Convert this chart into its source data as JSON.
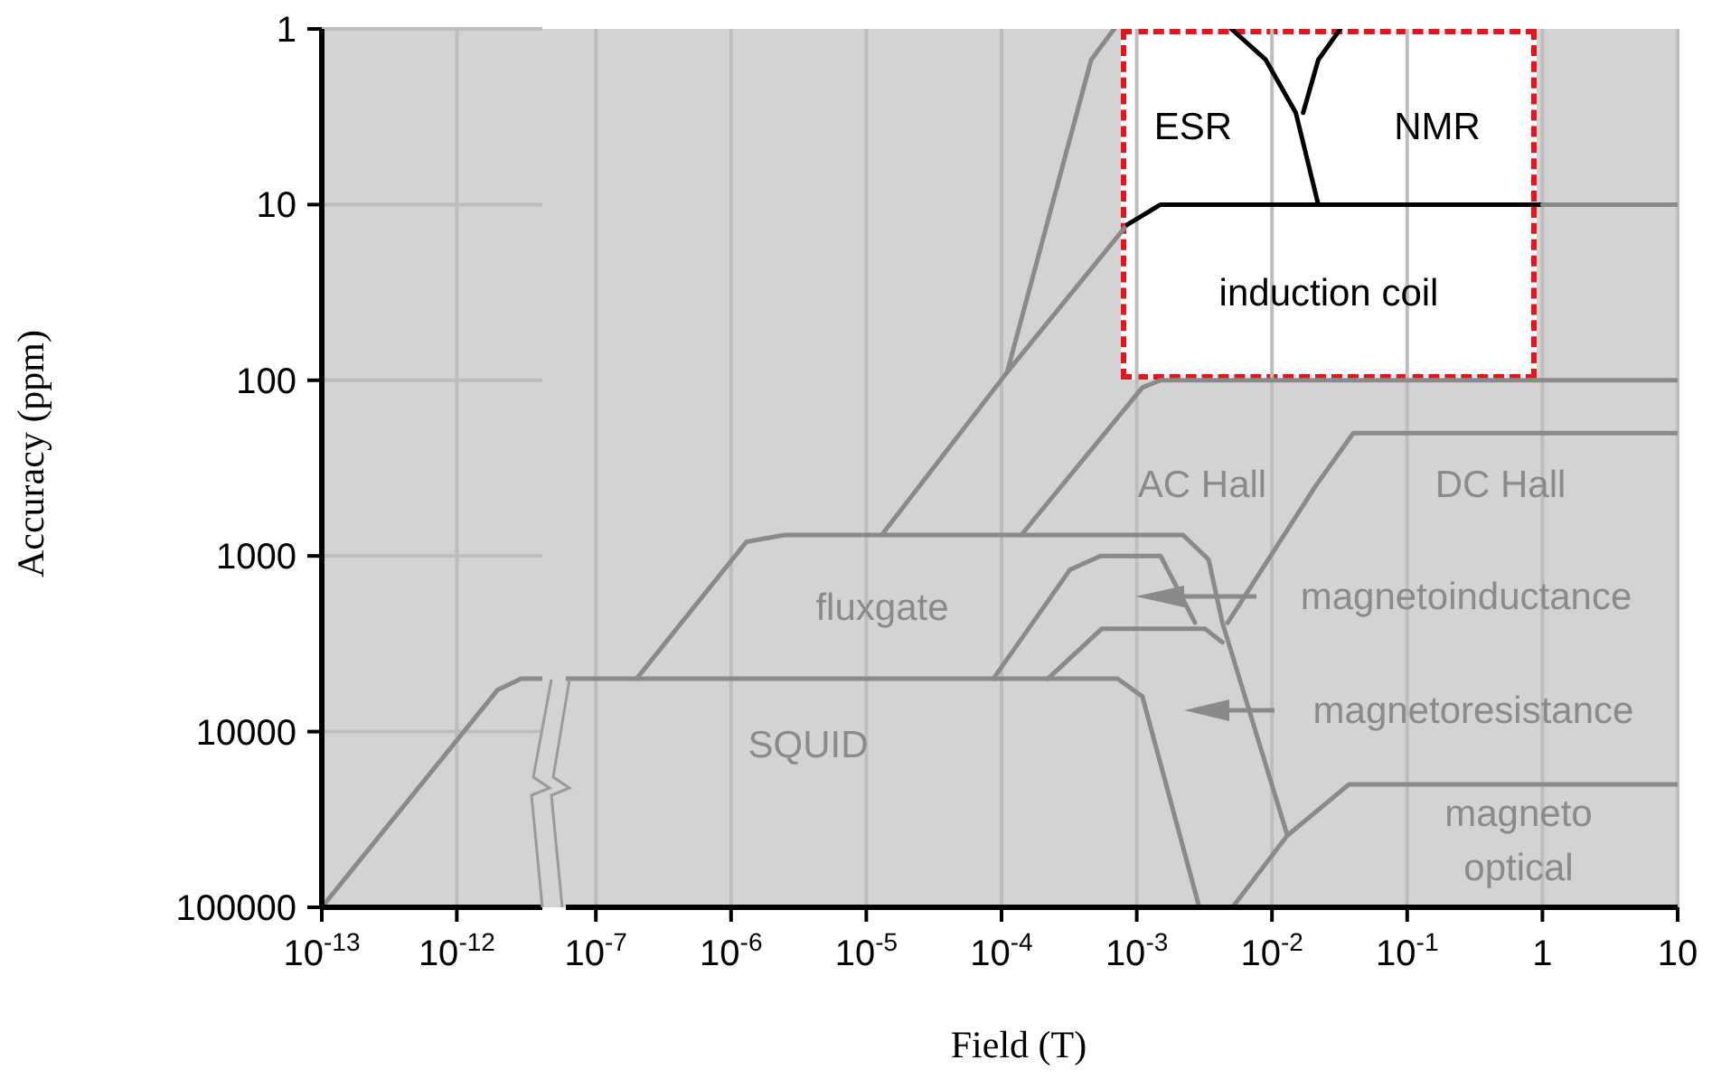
{
  "chart_data": [
    {
      "type": "line",
      "ylabel": "Accuracy (ppm)",
      "log": "xy",
      "grid": true,
      "marker": "none",
      "xlim": [
        1e-13,
        4.3e-12
      ],
      "xticks": [
        {
          "value": 1e-13,
          "label": "10$^{-13}$"
        },
        {
          "value": 1e-12,
          "label": "10$^{-12}$"
        }
      ],
      "ylim": [
        100000,
        1
      ],
      "yticks": [
        1,
        10,
        100,
        1000,
        10000,
        100000
      ],
      "series": [
        {
          "color": "#8a8a8a",
          "x": [
            1e-13,
            2e-12,
            3e-12,
            4.3e-12
          ],
          "values": [
            100000,
            5800,
            5000,
            5000
          ]
        }
      ]
    },
    {
      "type": "line",
      "xlabel": "Field (T)",
      "log": "xy",
      "grid": true,
      "marker": "none",
      "tick_labels": "x",
      "xlim": [
        6e-08,
        10
      ],
      "xticks": [
        {
          "value": 1e-07,
          "label": "10$^{-7}$"
        },
        {
          "value": 1e-06,
          "label": "10$^{-6}$"
        },
        {
          "value": 1e-05,
          "label": "10$^{-5}$"
        },
        {
          "value": 0.0001,
          "label": "10$^{-4}$"
        },
        {
          "value": 0.001,
          "label": "10$^{-3}$"
        },
        {
          "value": 0.01,
          "label": "10$^{-2}$"
        },
        {
          "value": 0.1,
          "label": "10$^{-1}$"
        },
        1,
        10
      ],
      "ylim": [
        100000,
        1
      ],
      "yticks": [
        1,
        10,
        100,
        1000,
        10000,
        100000
      ],
      "series": [
        {
          "color": "#8a8a8a",
          "x": [
            6e-08,
            0.00072,
            0.0011,
            0.0029
          ],
          "values": [
            5000,
            5000,
            6300,
            100000
          ]
        },
        {
          "color": "#8a8a8a",
          "x": [
            2e-07,
            1.3e-06,
            2.5e-06,
            0.0022,
            0.0034,
            0.0043,
            0.013
          ],
          "values": [
            5000,
            830,
            760,
            760,
            1050,
            2400,
            39000
          ]
        },
        {
          "color": "#8a8a8a",
          "x": [
            1.3e-05,
            0.00011,
            0.00046,
            0.00068
          ],
          "values": [
            760,
            90,
            1.5,
            1
          ]
        },
        {
          "color": "#8a8a8a",
          "x": [
            0.00011,
            0.00085
          ],
          "values": [
            90,
            13
          ]
        },
        {
          "color": "#000000",
          "x": [
            0.00085,
            0.0015,
            1
          ],
          "values": [
            13,
            10,
            10
          ]
        },
        {
          "color": "#8a8a8a",
          "x": [
            1,
            10
          ],
          "values": [
            10,
            10
          ]
        },
        {
          "color": "#8a8a8a",
          "x": [
            0.00014,
            0.0011,
            0.0015,
            10
          ],
          "values": [
            760,
            110,
            100,
            100
          ]
        },
        {
          "color": "#8a8a8a",
          "x": [
            0.0047,
            0.021,
            0.04,
            10
          ],
          "values": [
            2400,
            400,
            200,
            200
          ]
        },
        {
          "color": "#8a8a8a",
          "x": [
            8.7e-05,
            0.00032,
            0.00054,
            0.0015,
            0.0027
          ],
          "values": [
            5000,
            1200,
            1000,
            1000,
            2400
          ]
        },
        {
          "color": "#8a8a8a",
          "x": [
            0.00022,
            0.00055,
            0.0032,
            0.0043
          ],
          "values": [
            5000,
            2600,
            2600,
            3100
          ]
        },
        {
          "color": "#8a8a8a",
          "x": [
            0.0051,
            0.013,
            0.037,
            10
          ],
          "values": [
            100000,
            39000,
            20000,
            20000
          ]
        },
        {
          "color": "#000000",
          "x": [
            0.005,
            0.009,
            0.015,
            0.022
          ],
          "values": [
            1,
            1.5,
            3,
            10
          ]
        },
        {
          "color": "#000000",
          "x": [
            0.032,
            0.022,
            0.017
          ],
          "values": [
            1,
            1.5,
            3
          ]
        }
      ],
      "annotations": [
        "ESR",
        "NMR",
        "induction coil",
        "AC Hall",
        "DC Hall",
        "fluxgate",
        "magnetoinductance",
        "magnetoresistance",
        "SQUID",
        "magneto\noptical"
      ]
    }
  ]
}
